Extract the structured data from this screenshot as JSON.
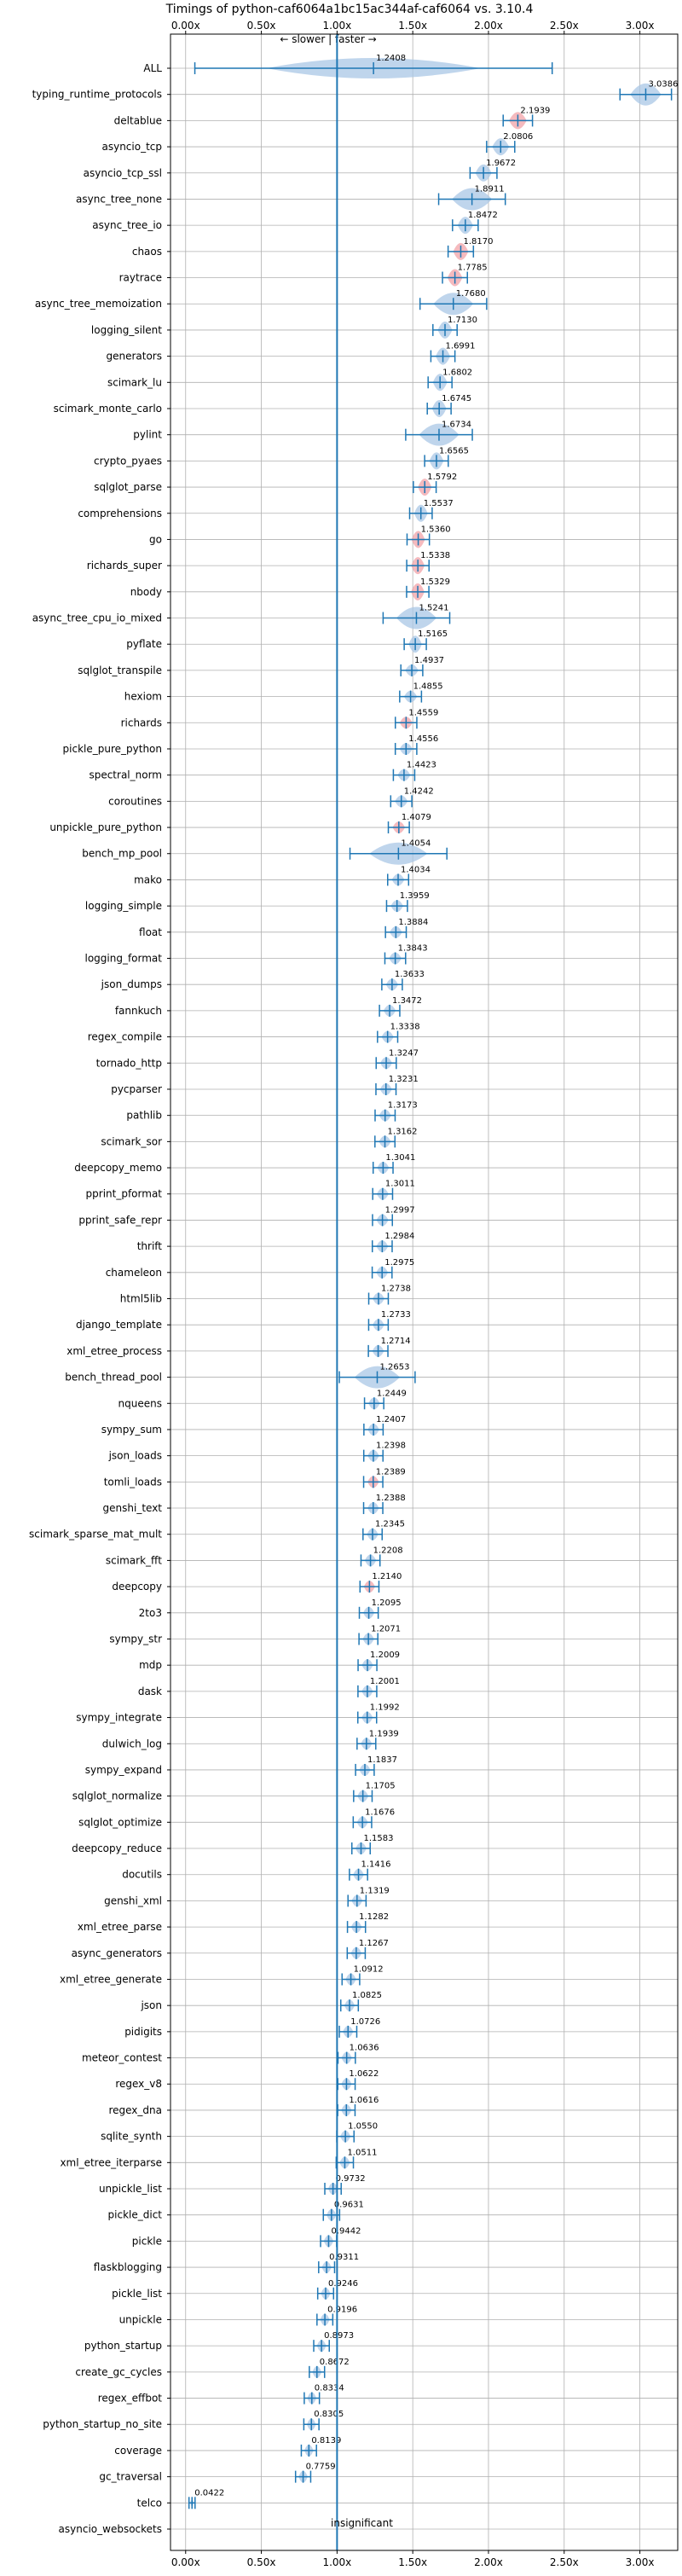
{
  "chart_data": {
    "type": "violin",
    "title": "Timings of python-caf6064a1bc15ac344af-caf6064 vs. 3.10.4",
    "direction_label": "← slower | faster →",
    "reference_label": "insignificant",
    "reference_x": 1.0,
    "xlim": [
      -0.1,
      3.25
    ],
    "xticks": [
      0.0,
      0.5,
      1.0,
      1.5,
      2.0,
      2.5,
      3.0
    ],
    "xtick_labels": [
      "0.00x",
      "0.50x",
      "1.00x",
      "1.50x",
      "2.00x",
      "2.50x",
      "3.00x"
    ],
    "grid": true,
    "colors": {
      "violin": "#a9c7e6",
      "violin_highlight": "#f2a3a8",
      "line": "#1f77b4",
      "grid": "#b0b0b0"
    },
    "categories": [
      {
        "label": "ALL",
        "value": 1.2408
      },
      {
        "label": "typing_runtime_protocols",
        "value": 3.0386
      },
      {
        "label": "deltablue",
        "value": 2.1939
      },
      {
        "label": "asyncio_tcp",
        "value": 2.0806
      },
      {
        "label": "asyncio_tcp_ssl",
        "value": 1.9672
      },
      {
        "label": "async_tree_none",
        "value": 1.8911
      },
      {
        "label": "async_tree_io",
        "value": 1.8472
      },
      {
        "label": "chaos",
        "value": 1.817
      },
      {
        "label": "raytrace",
        "value": 1.7785
      },
      {
        "label": "async_tree_memoization",
        "value": 1.768
      },
      {
        "label": "logging_silent",
        "value": 1.713
      },
      {
        "label": "generators",
        "value": 1.6991
      },
      {
        "label": "scimark_lu",
        "value": 1.6802
      },
      {
        "label": "scimark_monte_carlo",
        "value": 1.6745
      },
      {
        "label": "pylint",
        "value": 1.6734
      },
      {
        "label": "crypto_pyaes",
        "value": 1.6565
      },
      {
        "label": "sqlglot_parse",
        "value": 1.5792
      },
      {
        "label": "comprehensions",
        "value": 1.5537
      },
      {
        "label": "go",
        "value": 1.536
      },
      {
        "label": "richards_super",
        "value": 1.5338
      },
      {
        "label": "nbody",
        "value": 1.5329
      },
      {
        "label": "async_tree_cpu_io_mixed",
        "value": 1.5241
      },
      {
        "label": "pyflate",
        "value": 1.5165
      },
      {
        "label": "sqlglot_transpile",
        "value": 1.4937
      },
      {
        "label": "hexiom",
        "value": 1.4855
      },
      {
        "label": "richards",
        "value": 1.4559
      },
      {
        "label": "pickle_pure_python",
        "value": 1.4556
      },
      {
        "label": "spectral_norm",
        "value": 1.4423
      },
      {
        "label": "coroutines",
        "value": 1.4242
      },
      {
        "label": "unpickle_pure_python",
        "value": 1.4079
      },
      {
        "label": "bench_mp_pool",
        "value": 1.4054
      },
      {
        "label": "mako",
        "value": 1.4034
      },
      {
        "label": "logging_simple",
        "value": 1.3959
      },
      {
        "label": "float",
        "value": 1.3884
      },
      {
        "label": "logging_format",
        "value": 1.3843
      },
      {
        "label": "json_dumps",
        "value": 1.3633
      },
      {
        "label": "fannkuch",
        "value": 1.3472
      },
      {
        "label": "regex_compile",
        "value": 1.3338
      },
      {
        "label": "tornado_http",
        "value": 1.3247
      },
      {
        "label": "pycparser",
        "value": 1.3231
      },
      {
        "label": "pathlib",
        "value": 1.3173
      },
      {
        "label": "scimark_sor",
        "value": 1.3162
      },
      {
        "label": "deepcopy_memo",
        "value": 1.3041
      },
      {
        "label": "pprint_pformat",
        "value": 1.3011
      },
      {
        "label": "pprint_safe_repr",
        "value": 1.2997
      },
      {
        "label": "thrift",
        "value": 1.2984
      },
      {
        "label": "chameleon",
        "value": 1.2975
      },
      {
        "label": "html5lib",
        "value": 1.2738
      },
      {
        "label": "django_template",
        "value": 1.2733
      },
      {
        "label": "xml_etree_process",
        "value": 1.2714
      },
      {
        "label": "bench_thread_pool",
        "value": 1.2653
      },
      {
        "label": "nqueens",
        "value": 1.2449
      },
      {
        "label": "sympy_sum",
        "value": 1.2407
      },
      {
        "label": "json_loads",
        "value": 1.2398
      },
      {
        "label": "tomli_loads",
        "value": 1.2389
      },
      {
        "label": "genshi_text",
        "value": 1.2388
      },
      {
        "label": "scimark_sparse_mat_mult",
        "value": 1.2345
      },
      {
        "label": "scimark_fft",
        "value": 1.2208
      },
      {
        "label": "deepcopy",
        "value": 1.214
      },
      {
        "label": "2to3",
        "value": 1.2095
      },
      {
        "label": "sympy_str",
        "value": 1.2071
      },
      {
        "label": "mdp",
        "value": 1.2009
      },
      {
        "label": "dask",
        "value": 1.2001
      },
      {
        "label": "sympy_integrate",
        "value": 1.1992
      },
      {
        "label": "dulwich_log",
        "value": 1.1939
      },
      {
        "label": "sympy_expand",
        "value": 1.1837
      },
      {
        "label": "sqlglot_normalize",
        "value": 1.1705
      },
      {
        "label": "sqlglot_optimize",
        "value": 1.1676
      },
      {
        "label": "deepcopy_reduce",
        "value": 1.1583
      },
      {
        "label": "docutils",
        "value": 1.1416
      },
      {
        "label": "genshi_xml",
        "value": 1.1319
      },
      {
        "label": "xml_etree_parse",
        "value": 1.1282
      },
      {
        "label": "async_generators",
        "value": 1.1267
      },
      {
        "label": "xml_etree_generate",
        "value": 1.0912
      },
      {
        "label": "json",
        "value": 1.0825
      },
      {
        "label": "pidigits",
        "value": 1.0726
      },
      {
        "label": "meteor_contest",
        "value": 1.0636
      },
      {
        "label": "regex_v8",
        "value": 1.0622
      },
      {
        "label": "regex_dna",
        "value": 1.0616
      },
      {
        "label": "sqlite_synth",
        "value": 1.055
      },
      {
        "label": "xml_etree_iterparse",
        "value": 1.0511
      },
      {
        "label": "unpickle_list",
        "value": 0.9732
      },
      {
        "label": "pickle_dict",
        "value": 0.9631
      },
      {
        "label": "pickle",
        "value": 0.9442
      },
      {
        "label": "flaskblogging",
        "value": 0.9311
      },
      {
        "label": "pickle_list",
        "value": 0.9246
      },
      {
        "label": "unpickle",
        "value": 0.9196
      },
      {
        "label": "python_startup",
        "value": 0.8973
      },
      {
        "label": "create_gc_cycles",
        "value": 0.8672
      },
      {
        "label": "regex_effbot",
        "value": 0.8334
      },
      {
        "label": "python_startup_no_site",
        "value": 0.8305
      },
      {
        "label": "coverage",
        "value": 0.8139
      },
      {
        "label": "gc_traversal",
        "value": 0.7759
      },
      {
        "label": "telco",
        "value": 0.0422
      },
      {
        "label": "asyncio_websockets",
        "value": null
      }
    ]
  }
}
